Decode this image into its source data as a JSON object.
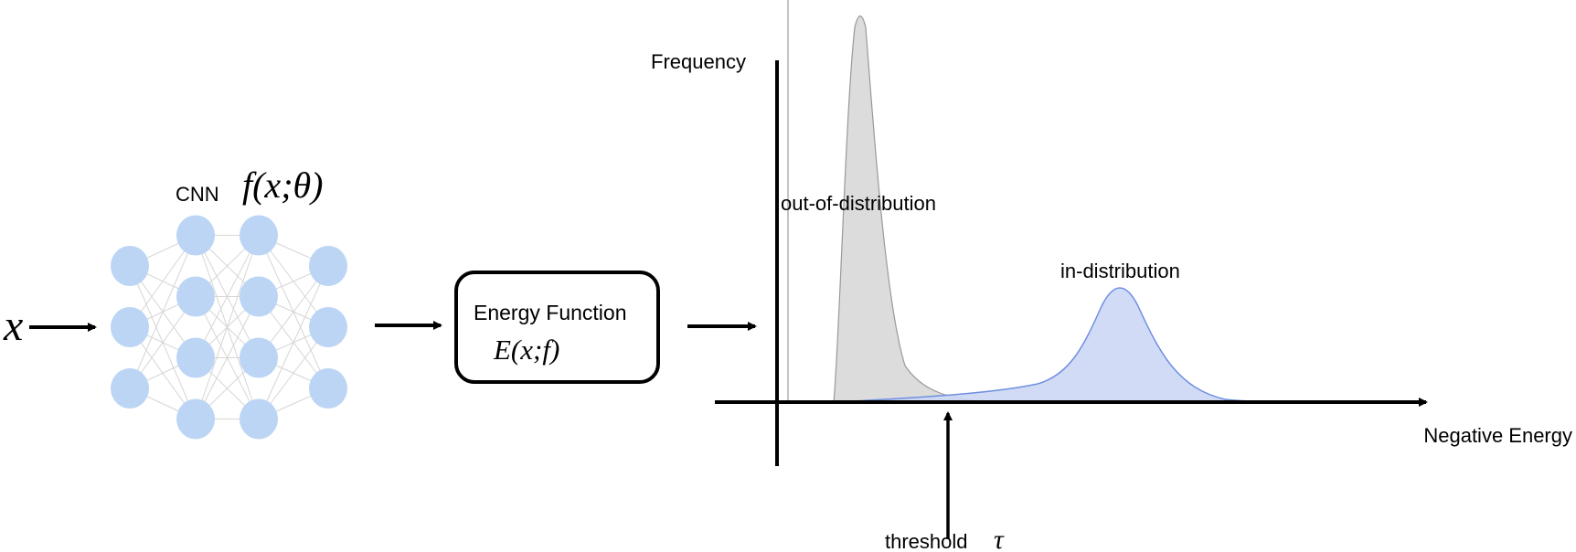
{
  "input": {
    "symbol": "x"
  },
  "cnn": {
    "label": "CNN",
    "formula": "f(x;θ)",
    "layers": [
      3,
      4,
      4,
      3
    ],
    "node_color": "#bcd5f5",
    "edge_color": "#d6d6d6"
  },
  "energy_box": {
    "title": "Energy Function",
    "formula": "E(x;f)"
  },
  "plot": {
    "y_axis_label": "Frequency",
    "x_axis_label": "Negative Energy",
    "ood_label": "out-of-distribution",
    "id_label": "in-distribution",
    "threshold_label": "threshold",
    "threshold_symbol": "τ",
    "ood_color": "#dcdcdc",
    "ood_stroke": "#999999",
    "id_color": "#ccd7f4",
    "id_stroke": "#6f8fe0"
  }
}
